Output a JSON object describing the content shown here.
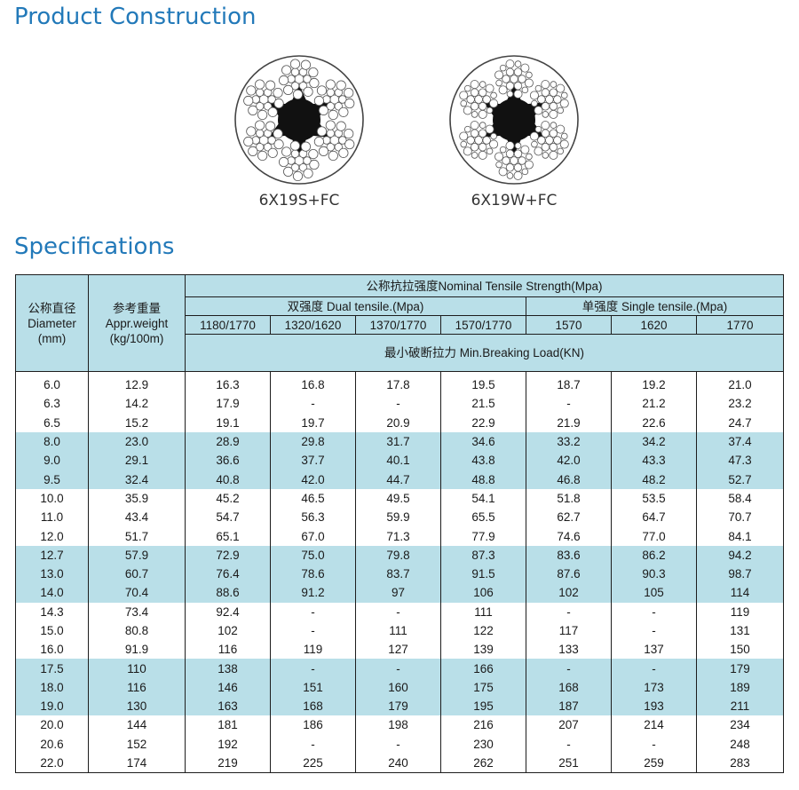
{
  "construction": {
    "title": "Product Construction",
    "diagrams": [
      {
        "caption": "6X19S+FC"
      },
      {
        "caption": "6X19W+FC"
      }
    ]
  },
  "specs": {
    "title": "Specifications",
    "header": {
      "diameter": [
        "公称直径",
        "Diameter",
        "(mm)"
      ],
      "weight": [
        "参考重量",
        "Appr.weight",
        "(kg/100m)"
      ],
      "nominal": "公称抗拉强度Nominal Tensile Strength(Mpa)",
      "dual": "双强度 Dual tensile.(Mpa)",
      "single": "单强度 Single tensile.(Mpa)",
      "grades": [
        "1180/1770",
        "1320/1620",
        "1370/1770",
        "1570/1770",
        "1570",
        "1620",
        "1770"
      ],
      "breaking": "最小破断拉力 Min.Breaking Load(KN)"
    },
    "rows": [
      [
        "6.0",
        "12.9",
        "16.3",
        "16.8",
        "17.8",
        "19.5",
        "18.7",
        "19.2",
        "21.0"
      ],
      [
        "6.3",
        "14.2",
        "17.9",
        "-",
        "-",
        "21.5",
        "-",
        "21.2",
        "23.2"
      ],
      [
        "6.5",
        "15.2",
        "19.1",
        "19.7",
        "20.9",
        "22.9",
        "21.9",
        "22.6",
        "24.7"
      ],
      [
        "8.0",
        "23.0",
        "28.9",
        "29.8",
        "31.7",
        "34.6",
        "33.2",
        "34.2",
        "37.4"
      ],
      [
        "9.0",
        "29.1",
        "36.6",
        "37.7",
        "40.1",
        "43.8",
        "42.0",
        "43.3",
        "47.3"
      ],
      [
        "9.5",
        "32.4",
        "40.8",
        "42.0",
        "44.7",
        "48.8",
        "46.8",
        "48.2",
        "52.7"
      ],
      [
        "10.0",
        "35.9",
        "45.2",
        "46.5",
        "49.5",
        "54.1",
        "51.8",
        "53.5",
        "58.4"
      ],
      [
        "11.0",
        "43.4",
        "54.7",
        "56.3",
        "59.9",
        "65.5",
        "62.7",
        "64.7",
        "70.7"
      ],
      [
        "12.0",
        "51.7",
        "65.1",
        "67.0",
        "71.3",
        "77.9",
        "74.6",
        "77.0",
        "84.1"
      ],
      [
        "12.7",
        "57.9",
        "72.9",
        "75.0",
        "79.8",
        "87.3",
        "83.6",
        "86.2",
        "94.2"
      ],
      [
        "13.0",
        "60.7",
        "76.4",
        "78.6",
        "83.7",
        "91.5",
        "87.6",
        "90.3",
        "98.7"
      ],
      [
        "14.0",
        "70.4",
        "88.6",
        "91.2",
        "97",
        "106",
        "102",
        "105",
        "114"
      ],
      [
        "14.3",
        "73.4",
        "92.4",
        "-",
        "-",
        "111",
        "-",
        "-",
        "119"
      ],
      [
        "15.0",
        "80.8",
        "102",
        "-",
        "111",
        "122",
        "117",
        "-",
        "131"
      ],
      [
        "16.0",
        "91.9",
        "116",
        "119",
        "127",
        "139",
        "133",
        "137",
        "150"
      ],
      [
        "17.5",
        "110",
        "138",
        "-",
        "-",
        "166",
        "-",
        "-",
        "179"
      ],
      [
        "18.0",
        "116",
        "146",
        "151",
        "160",
        "175",
        "168",
        "173",
        "189"
      ],
      [
        "19.0",
        "130",
        "163",
        "168",
        "179",
        "195",
        "187",
        "193",
        "211"
      ],
      [
        "20.0",
        "144",
        "181",
        "186",
        "198",
        "216",
        "207",
        "214",
        "234"
      ],
      [
        "20.6",
        "152",
        "192",
        "-",
        "-",
        "230",
        "-",
        "-",
        "248"
      ],
      [
        "22.0",
        "174",
        "219",
        "225",
        "240",
        "262",
        "251",
        "259",
        "283"
      ]
    ],
    "shade_color": "#b9dfe8",
    "title_color": "#2279b9"
  }
}
